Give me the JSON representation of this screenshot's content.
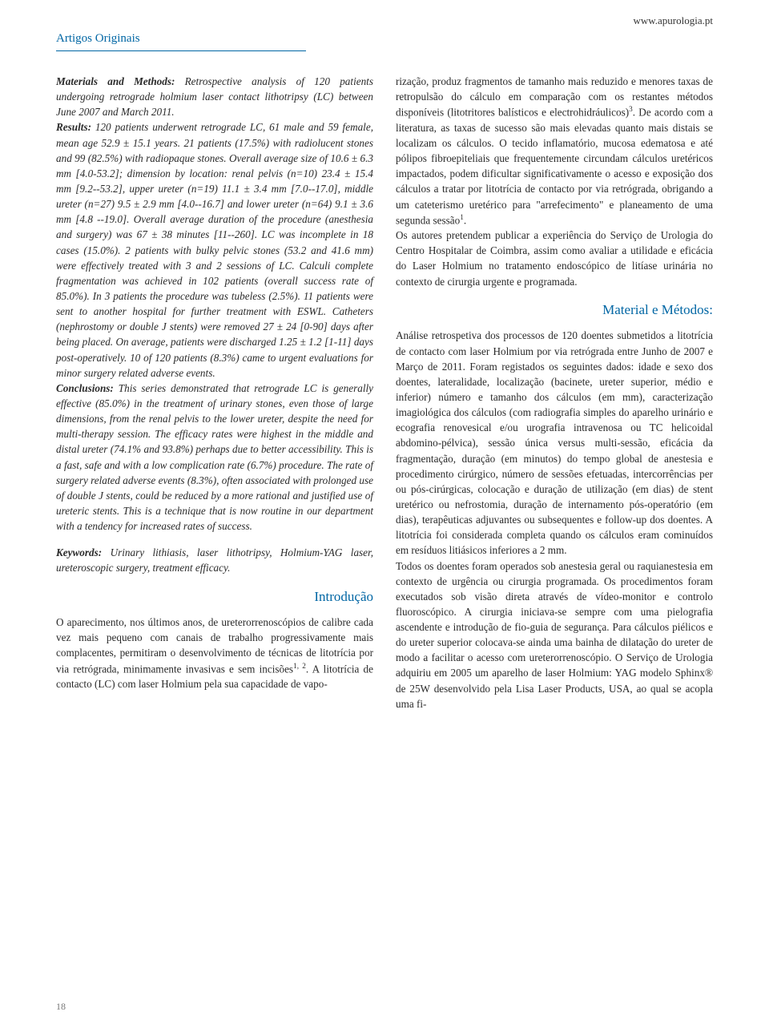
{
  "header_url": "www.apurologia.pt",
  "section_label": "Artigos Originais",
  "page_number": "18",
  "colors": {
    "accent": "#0066a4",
    "text": "#2a2a2a",
    "background": "#ffffff",
    "page_num": "#777777"
  },
  "typography": {
    "body_fontsize_pt": 10,
    "heading_fontsize_pt": 13,
    "font_family": "Georgia / Bodoni-like serif"
  },
  "left_column": {
    "materials_label": "Materials and Methods:",
    "materials_body": " Retrospective analysis of 120 patients undergoing retrograde holmium laser contact lithotripsy (LC) between June 2007 and March 2011.",
    "results_label": "Results:",
    "results_body": " 120 patients underwent retrograde LC, 61 male and 59 female, mean age 52.9 ± 15.1 years. 21 patients (17.5%) with radiolucent stones and 99 (82.5%) with radiopaque stones. Overall average size of 10.6 ± 6.3 mm [4.0-53.2]; dimension by location: renal pelvis (n=10) 23.4 ± 15.4 mm [9.2--53.2], upper ureter (n=19) 11.1 ± 3.4 mm [7.0--17.0], middle ureter (n=27) 9.5 ± 2.9 mm [4.0--16.7] and lower ureter (n=64) 9.1 ± 3.6 mm [4.8 --19.0]. Overall average duration of the procedure (anesthesia and surgery) was 67 ± 38 minutes [11--260]. LC was incomplete in 18 cases (15.0%). 2 patients with bulky pelvic stones (53.2 and 41.6 mm) were effectively treated with 3 and 2 sessions of LC. Calculi complete fragmentation was achieved in 102 patients (overall success rate of 85.0%). In 3 patients the procedure was tubeless (2.5%). 11 patients were sent to another hospital for further treatment with ESWL. Catheters (nephrostomy or double J stents) were removed 27 ± 24 [0-90] days after being placed. On average, patients were discharged 1.25 ± 1.2 [1-11] days post-operatively. 10 of 120 patients (8.3%) came to urgent evaluations for minor surgery related adverse events.",
    "conclusions_label": "Conclusions:",
    "conclusions_body": " This series demonstrated that retrograde LC is generally effective (85.0%) in the treatment of urinary stones, even those of large dimensions, from the renal pelvis to the lower ureter, despite the need for multi-therapy session. The efficacy rates were highest in the middle and distal ureter (74.1% and 93.8%) perhaps due to better accessibility. This is a fast, safe and with a low complication rate (6.7%) procedure. The rate of surgery related adverse events (8.3%), often associated with prolonged use of double J stents, could be reduced by a more rational and justified use of ureteric stents. This is a technique that is now routine in our department with a tendency for increased rates of success.",
    "keywords_label": "Keywords:",
    "keywords_body": " Urinary lithiasis, laser lithotripsy, Holmium-YAG laser, ureteroscopic surgery, treatment efficacy.",
    "intro_heading": "Introdução",
    "intro_body_part1": "O aparecimento, nos últimos anos, de ureterorrenoscópios de calibre cada vez mais pequeno com canais de trabalho progressivamente mais complacentes, permitiram o desenvolvimento de técnicas de litotrícia por via retrógrada, minimamente invasivas e sem incisões",
    "intro_sup1": "1, 2",
    "intro_body_part2": ". A litotrícia de contacto (LC) com laser Holmium pela sua capacidade de vapo-"
  },
  "right_column": {
    "top_body_part1": "rização, produz fragmentos de tamanho mais reduzido e menores taxas de retropulsão do cálculo em comparação com os restantes métodos disponíveis (litotritores balísticos e electrohidráulicos)",
    "top_sup1": "3",
    "top_body_part2": ". De acordo com a literatura, as taxas de sucesso são mais elevadas quanto mais distais se localizam os cálculos. O tecido inflamatório, mucosa edematosa e até pólipos fibroepiteliais que frequentemente circundam cálculos uretéricos impactados, podem dificultar significativamente o acesso e exposição dos cálculos a tratar por litotrícia de contacto por via retrógrada, obrigando a um cateterismo uretérico para \"arrefecimento\" e planeamento de uma segunda sessão",
    "top_sup2": "1",
    "top_body_part3": ".",
    "top_body_para2": "Os autores pretendem publicar a experiência do Serviço de Urologia do Centro Hospitalar de Coimbra, assim como avaliar a utilidade e eficácia do Laser Holmium no tratamento endoscópico de litíase urinária no contexto de cirurgia urgente e programada.",
    "mm_heading": "Material e Métodos:",
    "mm_body_para1": "Análise retrospetiva dos processos de 120 doentes submetidos a litotrícia de contacto com laser Holmium por via retrógrada entre Junho de 2007 e Março de 2011. Foram registados os seguintes dados: idade e sexo dos doentes, lateralidade, localização (bacinete, ureter superior, médio e inferior) número e tamanho dos cálculos (em mm), caracterização imagiológica dos cálculos (com radiografia simples do aparelho urinário e ecografia renovesical e/ou urografia intravenosa ou TC helicoidal abdomino-pélvica), sessão única versus multi-sessão, eficácia da fragmentação, duração (em minutos) do tempo global de anestesia e procedimento cirúrgico, número de sessões efetuadas, intercorrências per ou pós-cirúrgicas, colocação e duração de utilização (em dias) de stent uretérico ou nefrostomia, duração de internamento pós-operatório (em dias), terapêuticas adjuvantes ou subsequentes e follow-up dos doentes. A litotrícia foi considerada completa quando os cálculos eram cominuídos em resíduos litiásicos inferiores a 2 mm.",
    "mm_body_para2": "Todos os doentes foram operados sob anestesia geral ou raquianestesia em contexto de urgência ou cirurgia programada. Os procedimentos foram executados sob visão direta através de vídeo-monitor e controlo fluoroscópico. A cirurgia iniciava-se sempre com uma pielografia ascendente e introdução de fio-guia de segurança. Para cálculos piélicos e do ureter superior colocava-se ainda uma bainha de dilatação do ureter de modo a facilitar o acesso com ureterorrenoscópio. O Serviço de Urologia adquiriu em 2005 um aparelho de laser Holmium: YAG modelo Sphinx® de 25W desenvolvido pela Lisa Laser Products, USA, ao qual se acopla uma fi-"
  }
}
